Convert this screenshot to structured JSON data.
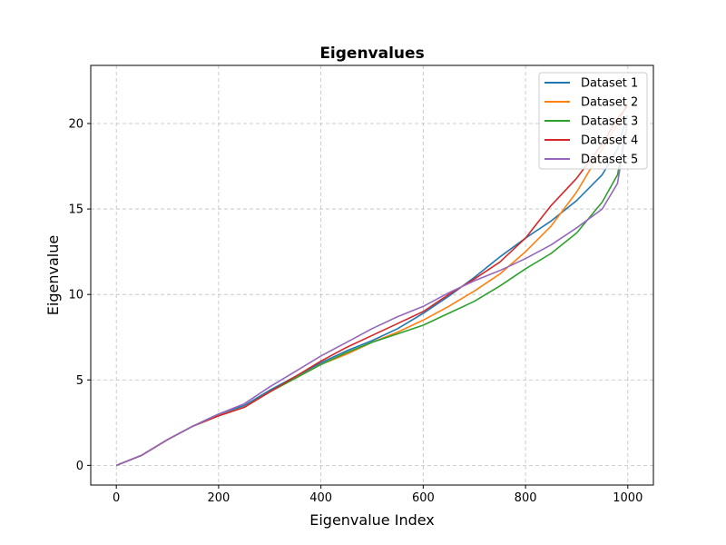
{
  "chart_data": {
    "type": "line",
    "title": "Eigenvalues",
    "xlabel": "Eigenvalue Index",
    "ylabel": "Eigenvalue",
    "xlim": [
      -50,
      1050
    ],
    "ylim": [
      -1.15,
      23.4
    ],
    "xticks": [
      0,
      200,
      400,
      600,
      800,
      1000
    ],
    "yticks": [
      0,
      5,
      10,
      15,
      20
    ],
    "grid": true,
    "legend_position": "top-right",
    "series": [
      {
        "name": "Dataset 1",
        "color": "#1f77b4",
        "x": [
          0,
          50,
          100,
          150,
          200,
          250,
          300,
          350,
          400,
          450,
          500,
          550,
          600,
          650,
          700,
          750,
          800,
          850,
          900,
          950,
          980,
          999
        ],
        "y": [
          0,
          0.6,
          1.5,
          2.3,
          3.0,
          3.5,
          4.4,
          5.2,
          6.0,
          6.7,
          7.3,
          8.0,
          8.9,
          9.9,
          11.0,
          12.2,
          13.3,
          14.3,
          15.5,
          17.0,
          18.5,
          20.5
        ]
      },
      {
        "name": "Dataset 2",
        "color": "#ff7f0e",
        "x": [
          0,
          50,
          100,
          150,
          200,
          250,
          300,
          350,
          400,
          450,
          500,
          550,
          600,
          650,
          700,
          750,
          800,
          850,
          900,
          950,
          980,
          999
        ],
        "y": [
          0,
          0.6,
          1.5,
          2.3,
          2.9,
          3.4,
          4.3,
          5.1,
          5.9,
          6.5,
          7.2,
          7.8,
          8.5,
          9.3,
          10.2,
          11.2,
          12.5,
          14.0,
          16.0,
          18.5,
          20.0,
          21.2
        ]
      },
      {
        "name": "Dataset 3",
        "color": "#2ca02c",
        "x": [
          0,
          50,
          100,
          150,
          200,
          250,
          300,
          350,
          400,
          450,
          500,
          550,
          600,
          650,
          700,
          750,
          800,
          850,
          900,
          950,
          980,
          999
        ],
        "y": [
          0,
          0.6,
          1.5,
          2.3,
          2.9,
          3.4,
          4.3,
          5.1,
          5.9,
          6.6,
          7.2,
          7.7,
          8.2,
          8.9,
          9.6,
          10.5,
          11.5,
          12.4,
          13.6,
          15.4,
          17.0,
          20.0
        ]
      },
      {
        "name": "Dataset 4",
        "color": "#d62728",
        "x": [
          0,
          50,
          100,
          150,
          200,
          250,
          300,
          350,
          400,
          450,
          500,
          550,
          600,
          650,
          700,
          750,
          800,
          850,
          900,
          950,
          980,
          999
        ],
        "y": [
          0,
          0.6,
          1.5,
          2.3,
          2.9,
          3.4,
          4.3,
          5.2,
          6.1,
          6.9,
          7.6,
          8.3,
          9.0,
          10.0,
          10.9,
          11.9,
          13.3,
          15.2,
          16.8,
          18.8,
          20.3,
          21.0
        ]
      },
      {
        "name": "Dataset 5",
        "color": "#9467bd",
        "x": [
          0,
          50,
          100,
          150,
          200,
          250,
          300,
          350,
          400,
          450,
          500,
          550,
          600,
          650,
          700,
          750,
          800,
          850,
          900,
          950,
          980,
          999
        ],
        "y": [
          0,
          0.6,
          1.5,
          2.3,
          3.0,
          3.6,
          4.6,
          5.5,
          6.4,
          7.2,
          8.0,
          8.7,
          9.3,
          10.1,
          10.8,
          11.4,
          12.1,
          12.9,
          13.9,
          15.0,
          16.5,
          20.0
        ]
      }
    ]
  }
}
